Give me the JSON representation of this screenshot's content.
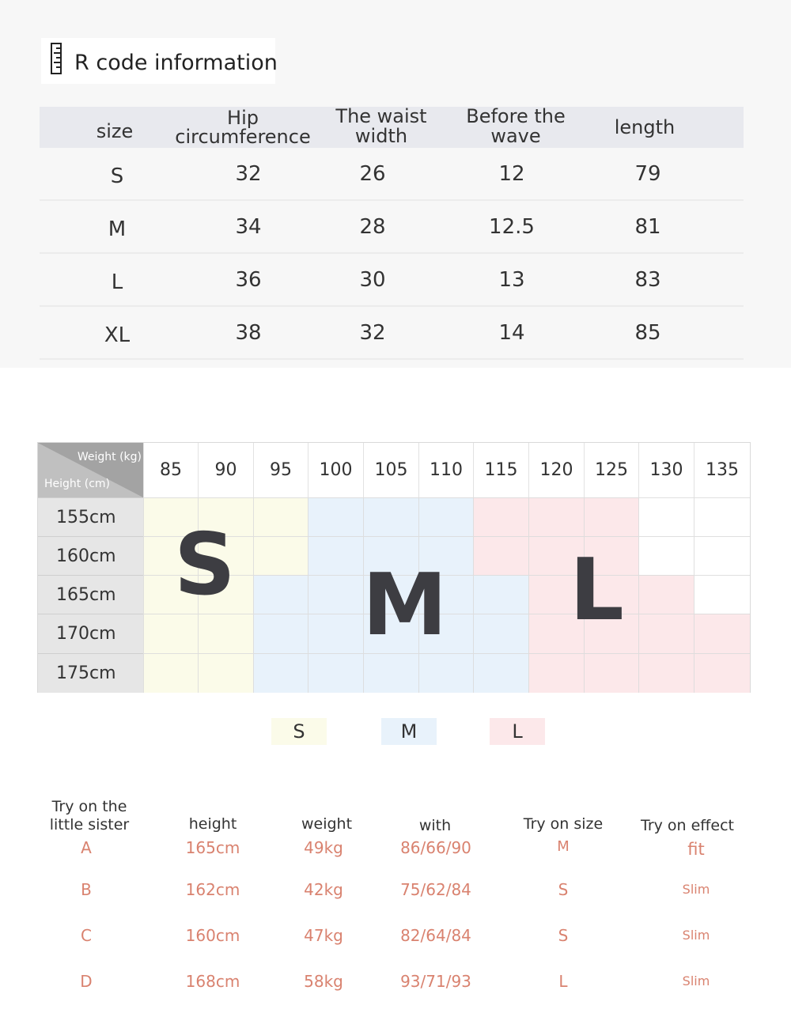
{
  "title": "R code information",
  "size_table": {
    "headers": [
      "size",
      "Hip circumference",
      "The waist width",
      "Before the wave",
      "length"
    ],
    "header_lines": {
      "waist": [
        "The waist",
        "width"
      ],
      "wave": [
        "Before the",
        "wave"
      ]
    },
    "rows": [
      [
        "S",
        "32",
        "26",
        "12",
        "79"
      ],
      [
        "M",
        "34",
        "28",
        "12.5",
        "81"
      ],
      [
        "L",
        "36",
        "30",
        "13",
        "83"
      ],
      [
        "XL",
        "38",
        "32",
        "14",
        "85"
      ]
    ]
  },
  "size_chart": {
    "weight_label": "Weight (kg)",
    "height_label": "Height (cm)",
    "weights": [
      "85",
      "90",
      "95",
      "100",
      "105",
      "110",
      "115",
      "120",
      "125",
      "130",
      "135"
    ],
    "heights": [
      "155cm",
      "160cm",
      "165cm",
      "170cm",
      "175cm"
    ],
    "zones": [
      [
        "S",
        "S",
        "S",
        "M",
        "M",
        "M",
        "L",
        "L",
        "L",
        "",
        ""
      ],
      [
        "S",
        "S",
        "S",
        "M",
        "M",
        "M",
        "L",
        "L",
        "L",
        "",
        ""
      ],
      [
        "S",
        "S",
        "M",
        "M",
        "M",
        "M",
        "M",
        "L",
        "L",
        "L",
        ""
      ],
      [
        "S",
        "S",
        "M",
        "M",
        "M",
        "M",
        "M",
        "L",
        "L",
        "L",
        "L"
      ],
      [
        "S",
        "S",
        "M",
        "M",
        "M",
        "M",
        "M",
        "L",
        "L",
        "L",
        "L"
      ]
    ],
    "zone_colors": {
      "S": "#fbfbe9",
      "M": "#e8f2fb",
      "L": "#fce8ea"
    },
    "big_labels": [
      "S",
      "M",
      "L"
    ]
  },
  "legend": [
    {
      "label": "S",
      "color": "#fbfbe9"
    },
    {
      "label": "M",
      "color": "#e8f2fb"
    },
    {
      "label": "L",
      "color": "#fce8ea"
    }
  ],
  "tryon": {
    "headers": {
      "sister": [
        "Try on the",
        "little sister"
      ],
      "height": "height",
      "weight": "weight",
      "with": "with",
      "size": "Try on size",
      "effect": "Try on effect"
    },
    "rows": [
      {
        "id": "A",
        "height": "165cm",
        "weight": "49kg",
        "with": "86/66/90",
        "size": "M",
        "effect": "fit"
      },
      {
        "id": "B",
        "height": "162cm",
        "weight": "42kg",
        "with": "75/62/84",
        "size": "S",
        "effect": "Slim"
      },
      {
        "id": "C",
        "height": "160cm",
        "weight": "47kg",
        "with": "82/64/84",
        "size": "S",
        "effect": "Slim"
      },
      {
        "id": "D",
        "height": "168cm",
        "weight": "58kg",
        "with": "93/71/93",
        "size": "L",
        "effect": "Slim"
      }
    ]
  },
  "icons": {
    "title_icon": "ruler-icon"
  }
}
